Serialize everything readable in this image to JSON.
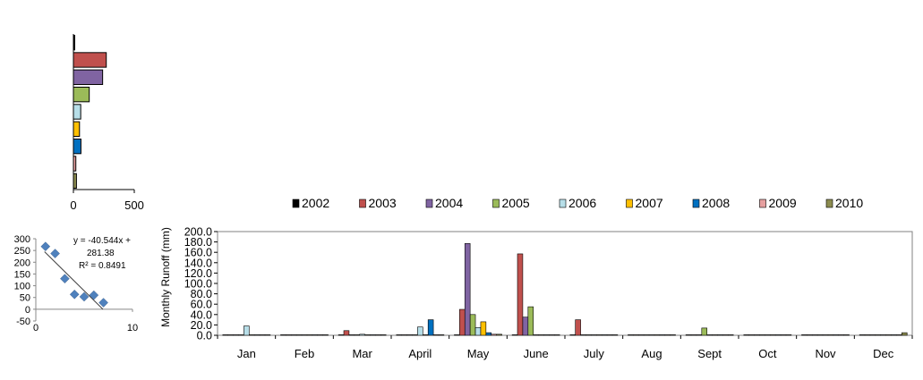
{
  "chart_data": [
    {
      "type": "bar",
      "orientation": "horizontal",
      "categories": [
        "2002",
        "2003",
        "2004",
        "2005",
        "2006",
        "2007",
        "2008",
        "2009",
        "2010"
      ],
      "values": [
        3,
        270,
        240,
        130,
        60,
        50,
        62,
        20,
        25
      ],
      "xlim": [
        0,
        500
      ],
      "xticks": [
        "0",
        "500"
      ]
    },
    {
      "type": "scatter",
      "x": [
        1,
        2,
        3,
        4,
        5,
        6,
        7
      ],
      "y": [
        267,
        237,
        130,
        63,
        53,
        60,
        28
      ],
      "xlim": [
        0,
        10
      ],
      "ylim": [
        -50,
        300
      ],
      "xticks": [
        "0",
        "10"
      ],
      "yticks": [
        "-50",
        "0",
        "50",
        "100",
        "150",
        "200",
        "250",
        "300"
      ],
      "trendline": {
        "slope": -40.544,
        "intercept": 281.38
      },
      "annotation": [
        "y = -40.544x +",
        "281.38",
        "R² = 0.8491"
      ]
    },
    {
      "type": "bar",
      "categories": [
        "Jan",
        "Feb",
        "Mar",
        "April",
        "May",
        "June",
        "July",
        "Aug",
        "Sept",
        "Oct",
        "Nov",
        "Dec"
      ],
      "ylabel": "Monthly  Runoff (mm)",
      "ylim": [
        0,
        200
      ],
      "yticks": [
        "0.0",
        "20.0",
        "40.0",
        "60.0",
        "80.0",
        "100.0",
        "120.0",
        "140.0",
        "160.0",
        "180.0",
        "200.0"
      ],
      "legend_position": "top",
      "series": [
        {
          "name": "2002",
          "color": "#000000",
          "values": [
            1,
            1,
            1,
            1,
            1,
            1,
            1,
            1,
            1,
            1,
            1,
            1
          ]
        },
        {
          "name": "2003",
          "color": "#c0504d",
          "values": [
            1,
            1,
            9,
            1,
            50,
            157,
            30,
            1,
            1,
            1,
            1,
            1
          ]
        },
        {
          "name": "2004",
          "color": "#8064a2",
          "values": [
            1,
            1,
            1,
            1,
            177,
            35,
            1,
            1,
            1,
            1,
            1,
            1
          ]
        },
        {
          "name": "2005",
          "color": "#9bbb59",
          "values": [
            1,
            1,
            1,
            1,
            40,
            55,
            1,
            1,
            14,
            1,
            1,
            1
          ]
        },
        {
          "name": "2006",
          "color": "#b7dee8",
          "values": [
            18,
            1,
            2,
            16,
            15,
            1,
            1,
            1,
            1,
            1,
            1,
            1
          ]
        },
        {
          "name": "2007",
          "color": "#ffc000",
          "values": [
            1,
            1,
            1,
            1,
            26,
            1,
            1,
            1,
            1,
            1,
            1,
            1
          ]
        },
        {
          "name": "2008",
          "color": "#0070c0",
          "values": [
            1,
            1,
            1,
            30,
            5,
            1,
            1,
            1,
            1,
            1,
            1,
            1
          ]
        },
        {
          "name": "2009",
          "color": "#e6a0a0",
          "values": [
            1,
            1,
            1,
            1,
            2,
            1,
            1,
            1,
            1,
            1,
            1,
            1
          ]
        },
        {
          "name": "2010",
          "color": "#8c8c50",
          "values": [
            1,
            1,
            1,
            1,
            2,
            1,
            1,
            1,
            1,
            1,
            1,
            5
          ]
        }
      ]
    }
  ]
}
